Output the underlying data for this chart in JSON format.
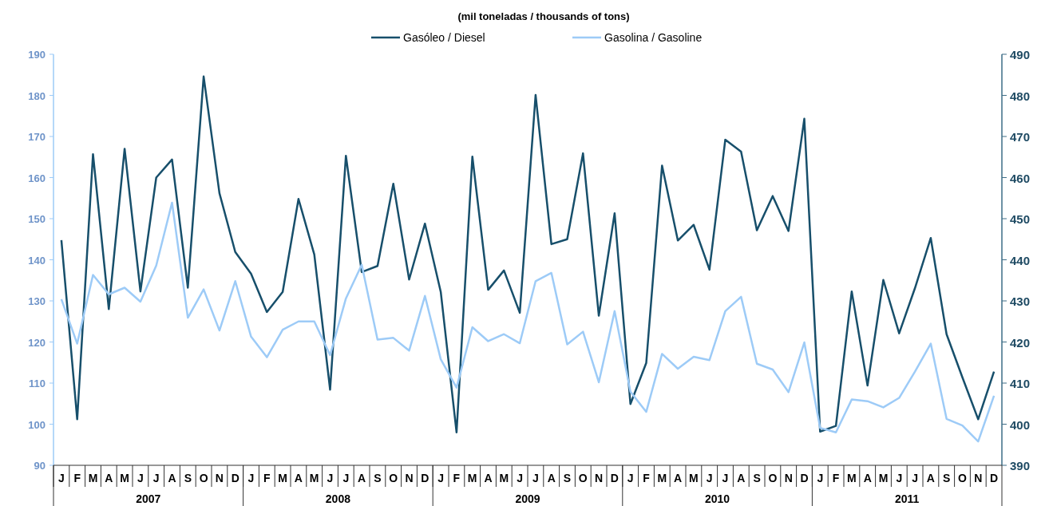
{
  "chart_data": {
    "type": "line",
    "title": "(mil toneladas / thousands of tons)",
    "categories": [
      "J",
      "F",
      "M",
      "A",
      "M",
      "J",
      "J",
      "A",
      "S",
      "O",
      "N",
      "D",
      "J",
      "F",
      "M",
      "A",
      "M",
      "J",
      "J",
      "A",
      "S",
      "O",
      "N",
      "D",
      "J",
      "F",
      "M",
      "A",
      "M",
      "J",
      "J",
      "A",
      "S",
      "O",
      "N",
      "D",
      "J",
      "F",
      "M",
      "A",
      "M",
      "J",
      "J",
      "A",
      "S",
      "O",
      "N",
      "D",
      "J",
      "F",
      "M",
      "A",
      "M",
      "J",
      "J",
      "A",
      "S",
      "O",
      "N",
      "D"
    ],
    "series": [
      {
        "name": "Gasóleo / Diesel",
        "color": "#174f6b",
        "axis": "y2",
        "values": [
          444.8,
          401.2,
          465.7,
          428,
          467,
          432.3,
          460,
          464.4,
          433.2,
          484.6,
          456.2,
          441.9,
          436.6,
          427.3,
          432.2,
          454.8,
          441.3,
          408.4,
          465.3,
          437,
          438.5,
          458.5,
          435.2,
          448.8,
          432.2,
          398,
          465.1,
          432.7,
          437.4,
          427.1,
          480.1,
          443.8,
          445,
          465.9,
          426.4,
          451.3,
          404.9,
          414.9,
          462.9,
          444.7,
          448.5,
          437.6,
          469.2,
          466.3,
          447.2,
          455.5,
          447,
          474.3,
          398.2,
          399.6,
          432.3,
          409.4,
          435.1,
          422.1,
          433.1,
          445.3,
          421.9,
          411.4,
          401.2,
          412.8
        ]
      },
      {
        "name": "Gasolina / Gasoline",
        "color": "#9dcbf7",
        "values": [
          130.4,
          119.6,
          136.3,
          131.6,
          133.2,
          129.8,
          138.6,
          153.9,
          125.9,
          132.8,
          122.8,
          134.8,
          121.3,
          116.3,
          123,
          125,
          125,
          116.8,
          130.6,
          138.8,
          120.6,
          121,
          117.9,
          131.2,
          115.8,
          108.9,
          123.6,
          120.2,
          121.9,
          119.7,
          134.8,
          136.8,
          119.4,
          122.5,
          110.2,
          127.5,
          107.9,
          103,
          117.1,
          113.5,
          116.4,
          115.6,
          127.5,
          131,
          114.7,
          113.3,
          107.8,
          119.9,
          99.1,
          98,
          106,
          105.6,
          104.1,
          106.4,
          112.8,
          119.6,
          101.3,
          99.7,
          95.8,
          106.9
        ]
      }
    ],
    "annotations": [
      "2007",
      "2008",
      "2009",
      "2010",
      "2011"
    ],
    "ylim": [
      90,
      190
    ],
    "yticks": [
      90,
      100,
      110,
      120,
      130,
      140,
      150,
      160,
      170,
      180,
      190
    ],
    "y2lim": [
      390,
      490
    ],
    "y2ticks": [
      390,
      400,
      410,
      420,
      430,
      440,
      450,
      460,
      470,
      480,
      490
    ],
    "legend": "top",
    "grid": false,
    "marker": "none",
    "line_style": "solid"
  }
}
